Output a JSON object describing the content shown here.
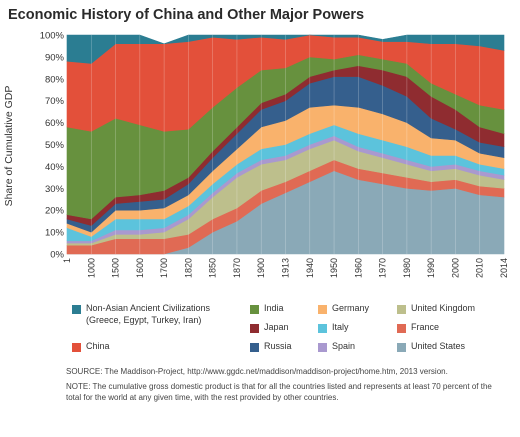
{
  "chart_data": {
    "type": "area",
    "stacked": true,
    "normalized": true,
    "title": "Economic History of China and Other Major Powers",
    "ylabel": "Share of Cumulative GDP",
    "xlabel": "",
    "ylim": [
      0,
      100
    ],
    "y_ticks": [
      "0%",
      "10%",
      "20%",
      "30%",
      "40%",
      "50%",
      "60%",
      "70%",
      "80%",
      "90%",
      "100%"
    ],
    "categories": [
      "1",
      "1000",
      "1500",
      "1600",
      "1700",
      "1820",
      "1850",
      "1870",
      "1900",
      "1913",
      "1940",
      "1950",
      "1960",
      "1970",
      "1980",
      "1990",
      "2000",
      "2010",
      "2014"
    ],
    "series": [
      {
        "name": "United States",
        "color": "#8aa9b7",
        "values": [
          0,
          0,
          0,
          0,
          0,
          3,
          10,
          15,
          23,
          28,
          33,
          38,
          34,
          32,
          30,
          29,
          30,
          27,
          26
        ]
      },
      {
        "name": "France",
        "color": "#e06a54",
        "values": [
          4,
          4,
          7,
          7,
          7,
          6,
          6,
          6,
          6,
          5,
          5,
          5,
          5,
          5,
          5,
          4,
          4,
          4,
          4
        ]
      },
      {
        "name": "United Kingdom",
        "color": "#bdbf8c",
        "values": [
          1,
          1,
          2,
          2,
          3,
          7,
          10,
          14,
          12,
          10,
          10,
          9,
          8,
          7,
          6,
          5,
          5,
          5,
          4
        ]
      },
      {
        "name": "Spain",
        "color": "#a999cf",
        "values": [
          1,
          1,
          2,
          2,
          2,
          2,
          2,
          2,
          2,
          2,
          2,
          2,
          2,
          2,
          2,
          2,
          2,
          2,
          2
        ]
      },
      {
        "name": "Italy",
        "color": "#5cc3dc",
        "values": [
          6,
          2,
          5,
          5,
          4,
          4,
          4,
          4,
          5,
          5,
          5,
          5,
          6,
          6,
          6,
          5,
          4,
          3,
          3
        ]
      },
      {
        "name": "Germany",
        "color": "#f9b26c",
        "values": [
          2,
          2,
          4,
          4,
          5,
          5,
          6,
          7,
          10,
          11,
          12,
          9,
          12,
          12,
          11,
          8,
          7,
          5,
          5
        ]
      },
      {
        "name": "Russia",
        "color": "#355f8d",
        "values": [
          2,
          3,
          3,
          4,
          4,
          5,
          6,
          7,
          8,
          9,
          11,
          13,
          14,
          13,
          12,
          9,
          5,
          5,
          5
        ]
      },
      {
        "name": "Japan",
        "color": "#8f2c30",
        "values": [
          2,
          3,
          3,
          3,
          4,
          3,
          3,
          3,
          3,
          3,
          3,
          3,
          5,
          7,
          9,
          10,
          9,
          7,
          6
        ]
      },
      {
        "name": "India",
        "color": "#67913e",
        "values": [
          40,
          40,
          36,
          32,
          27,
          22,
          20,
          18,
          15,
          12,
          9,
          5,
          5,
          5,
          6,
          6,
          7,
          10,
          11
        ]
      },
      {
        "name": "China",
        "color": "#e3503a",
        "values": [
          30,
          31,
          34,
          37,
          40,
          40,
          32,
          22,
          15,
          13,
          10,
          10,
          8,
          8,
          10,
          18,
          23,
          27,
          27
        ]
      },
      {
        "name": "Non-Asian Ancient Civilizations (Greece, Egypt, Turkey, Iran)",
        "color": "#2b7d92",
        "values": [
          12,
          13,
          4,
          4,
          0,
          3,
          1,
          2,
          1,
          2,
          0,
          1,
          1,
          1,
          3,
          4,
          4,
          5,
          7
        ]
      }
    ]
  },
  "legend": [
    {
      "key": "ancient",
      "line1": "Non-Asian Ancient Civilizations",
      "line2": "(Greece, Egypt, Turkey, Iran)",
      "color": "#2b7d92"
    },
    {
      "key": "china",
      "label": "China",
      "color": "#e3503a"
    },
    {
      "key": "india",
      "label": "India",
      "color": "#67913e"
    },
    {
      "key": "japan",
      "label": "Japan",
      "color": "#8f2c30"
    },
    {
      "key": "russia",
      "label": "Russia",
      "color": "#355f8d"
    },
    {
      "key": "germany",
      "label": "Germany",
      "color": "#f9b26c"
    },
    {
      "key": "italy",
      "label": "Italy",
      "color": "#5cc3dc"
    },
    {
      "key": "spain",
      "label": "Spain",
      "color": "#a999cf"
    },
    {
      "key": "uk",
      "label": "United Kingdom",
      "color": "#bdbf8c"
    },
    {
      "key": "france",
      "label": "France",
      "color": "#e06a54"
    },
    {
      "key": "us",
      "label": "United States",
      "color": "#8aa9b7"
    }
  ],
  "notes": {
    "source": "SOURCE: The Maddison-Project, http://www.ggdc.net/maddison/maddison-project/home.htm, 2013 version.",
    "note": "NOTE: The cumulative gross domestic product is that for all the countries listed and represents at least 70 percent of the total for the world at any given time, with the rest provided by other countries."
  }
}
